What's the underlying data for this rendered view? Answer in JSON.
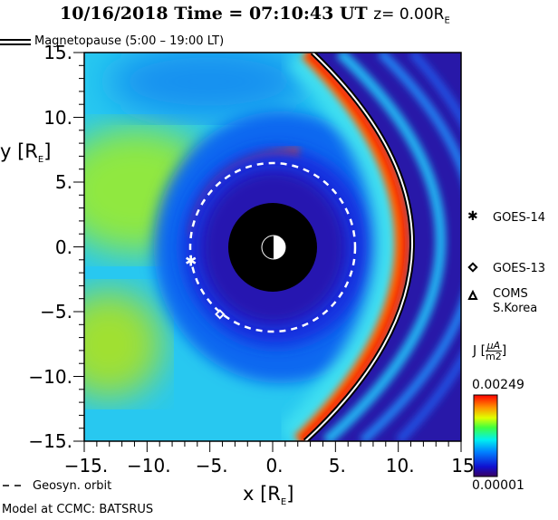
{
  "chart_data": {
    "type": "heatmap",
    "title_date": "10/16/2018 Time = 07:10:43 UT",
    "title_z": "z= 0.00R",
    "title_z_sub": "E",
    "xlabel": "x [R",
    "ylabel": "y [R",
    "axis_unit_sub": "E",
    "xlim": [
      -15,
      15
    ],
    "ylim": [
      -15,
      15
    ],
    "xticks": [
      "-15.",
      "-10.",
      "-5.",
      "0.",
      "5.",
      "10.",
      "15"
    ],
    "yticks": [
      "15.",
      "10.",
      "5.",
      "0.",
      "-5.",
      "-10.",
      "-15."
    ],
    "colorbar": {
      "label": "J",
      "unit_num": "μA",
      "unit_den": "m2",
      "max": "0.00249",
      "min": "0.00001",
      "colormap": "rainbow"
    },
    "legend": {
      "magnetopause": "Magnetopause (5:00 – 19:00 LT)",
      "geosync": "Geosyn. orbit"
    },
    "satellites": [
      {
        "name": "GOES-14",
        "symbol": "star",
        "x": -6.56,
        "y": -1.05
      },
      {
        "name": "GOES-13",
        "symbol": "diamond",
        "x": -4.2,
        "y": -5.2
      },
      {
        "name": "COMS",
        "name2": "S.Korea",
        "symbol": "triangle"
      }
    ],
    "earth_radius_re": 1,
    "inner_boundary_re": 3.5,
    "geosync_radius_re": 6.6,
    "footer": "Model at CCMC: BATSRUS"
  }
}
